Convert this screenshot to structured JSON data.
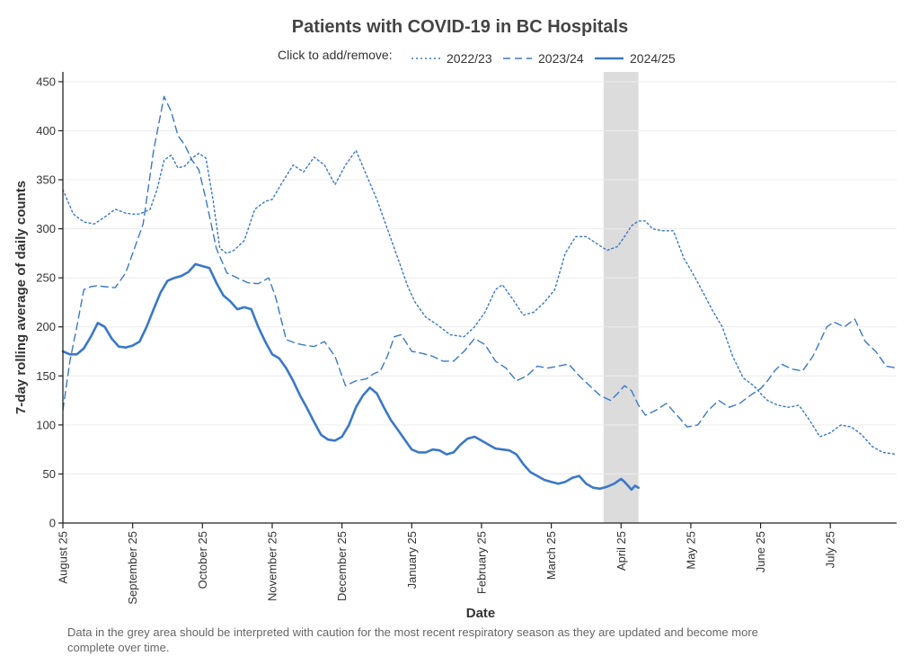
{
  "colors": {
    "series": "#3a78c9",
    "shade": "#dcdcdc",
    "grid": "#ececec",
    "text": "#333333"
  },
  "footnote": "Data in the grey area should be interpreted with caution for the most recent respiratory season as they are updated and become more complete over time.",
  "chart_data": {
    "type": "line",
    "title": "Patients with COVID-19 in BC Hospitals",
    "legend_hint": "Click to add/remove:",
    "legend_position": "top-center",
    "xlabel": "Date",
    "ylabel": "7-day rolling average of daily counts",
    "ylim": [
      0,
      460
    ],
    "yticks": [
      0,
      50,
      100,
      150,
      200,
      250,
      300,
      350,
      400,
      450
    ],
    "grid": true,
    "xaxis_months": [
      "August 25",
      "September 25",
      "October 25",
      "November 25",
      "December 25",
      "January 25",
      "February 25",
      "March 25",
      "April 25",
      "May 25",
      "June 25",
      "July 25"
    ],
    "xaxis_unit": "month index (0 = August)",
    "xlim": [
      0,
      11.95
    ],
    "caution_region": [
      7.75,
      8.25
    ],
    "series": [
      {
        "name": "2022/23",
        "style": "dotted",
        "x": [
          0,
          0.15,
          0.3,
          0.45,
          0.6,
          0.75,
          0.9,
          1.0,
          1.1,
          1.25,
          1.35,
          1.45,
          1.55,
          1.65,
          1.75,
          1.85,
          1.95,
          2.05,
          2.15,
          2.25,
          2.35,
          2.45,
          2.6,
          2.75,
          2.9,
          3.0,
          3.15,
          3.3,
          3.45,
          3.6,
          3.75,
          3.9,
          4.05,
          4.2,
          4.35,
          4.5,
          4.65,
          4.8,
          4.95,
          5.05,
          5.2,
          5.35,
          5.55,
          5.75,
          5.9,
          6.05,
          6.2,
          6.3,
          6.45,
          6.6,
          6.75,
          6.9,
          7.05,
          7.2,
          7.35,
          7.5,
          7.65,
          7.8,
          7.95,
          8.05,
          8.15,
          8.25,
          8.35,
          8.45,
          8.6,
          8.75,
          8.9,
          9.0,
          9.1,
          9.2,
          9.3,
          9.45,
          9.6,
          9.75,
          9.9,
          10.0,
          10.1,
          10.25,
          10.4,
          10.55,
          10.7,
          10.85,
          11.0,
          11.15,
          11.3,
          11.45,
          11.6,
          11.75,
          11.95
        ],
        "values": [
          340,
          315,
          307,
          305,
          312,
          320,
          316,
          315,
          315,
          320,
          340,
          370,
          375,
          362,
          364,
          372,
          377,
          372,
          330,
          280,
          275,
          278,
          288,
          320,
          328,
          330,
          348,
          365,
          358,
          373,
          365,
          345,
          365,
          380,
          355,
          330,
          300,
          270,
          240,
          225,
          210,
          203,
          192,
          190,
          200,
          215,
          238,
          243,
          228,
          212,
          215,
          225,
          238,
          275,
          292,
          292,
          285,
          278,
          282,
          292,
          303,
          308,
          308,
          300,
          298,
          298,
          270,
          258,
          245,
          232,
          218,
          200,
          170,
          148,
          140,
          132,
          125,
          120,
          118,
          120,
          105,
          88,
          92,
          100,
          98,
          90,
          78,
          72,
          70
        ]
      },
      {
        "name": "2023/24",
        "style": "dashed",
        "x": [
          0,
          0.1,
          0.2,
          0.3,
          0.4,
          0.5,
          0.6,
          0.75,
          0.9,
          1.0,
          1.15,
          1.3,
          1.45,
          1.55,
          1.65,
          1.75,
          1.85,
          1.95,
          2.05,
          2.2,
          2.35,
          2.5,
          2.65,
          2.8,
          2.95,
          3.05,
          3.2,
          3.35,
          3.5,
          3.6,
          3.75,
          3.9,
          4.05,
          4.2,
          4.35,
          4.45,
          4.55,
          4.65,
          4.75,
          4.85,
          5.0,
          5.15,
          5.3,
          5.45,
          5.6,
          5.75,
          5.9,
          6.05,
          6.2,
          6.35,
          6.5,
          6.65,
          6.8,
          6.95,
          7.1,
          7.25,
          7.4,
          7.55,
          7.7,
          7.85,
          7.95,
          8.05,
          8.15,
          8.25,
          8.35,
          8.5,
          8.65,
          8.8,
          8.95,
          9.1,
          9.25,
          9.4,
          9.55,
          9.7,
          9.85,
          10.0,
          10.1,
          10.2,
          10.3,
          10.45,
          10.6,
          10.75,
          10.85,
          10.95,
          11.05,
          11.2,
          11.35,
          11.5,
          11.65,
          11.8,
          11.95
        ],
        "values": [
          115,
          165,
          200,
          238,
          241,
          242,
          241,
          240,
          255,
          275,
          305,
          380,
          435,
          420,
          395,
          385,
          370,
          360,
          330,
          280,
          255,
          250,
          245,
          244,
          250,
          230,
          187,
          183,
          181,
          180,
          185,
          170,
          140,
          145,
          147,
          152,
          155,
          170,
          190,
          192,
          175,
          173,
          170,
          165,
          165,
          175,
          188,
          182,
          165,
          158,
          145,
          150,
          160,
          158,
          160,
          162,
          150,
          140,
          130,
          125,
          132,
          140,
          135,
          120,
          110,
          115,
          122,
          110,
          98,
          100,
          115,
          125,
          118,
          122,
          130,
          137,
          145,
          155,
          162,
          157,
          155,
          170,
          185,
          200,
          205,
          200,
          208,
          185,
          175,
          160,
          158
        ]
      },
      {
        "name": "2024/25",
        "style": "solid",
        "x": [
          0,
          0.1,
          0.2,
          0.3,
          0.4,
          0.5,
          0.6,
          0.7,
          0.8,
          0.9,
          1.0,
          1.1,
          1.2,
          1.3,
          1.4,
          1.5,
          1.6,
          1.7,
          1.8,
          1.9,
          2.0,
          2.1,
          2.2,
          2.3,
          2.4,
          2.5,
          2.6,
          2.7,
          2.8,
          2.9,
          3.0,
          3.1,
          3.2,
          3.3,
          3.4,
          3.5,
          3.6,
          3.7,
          3.8,
          3.9,
          4.0,
          4.1,
          4.2,
          4.3,
          4.4,
          4.5,
          4.6,
          4.7,
          4.8,
          4.9,
          5.0,
          5.1,
          5.2,
          5.3,
          5.4,
          5.5,
          5.6,
          5.7,
          5.8,
          5.9,
          6.0,
          6.1,
          6.2,
          6.3,
          6.4,
          6.5,
          6.6,
          6.7,
          6.8,
          6.9,
          7.0,
          7.1,
          7.2,
          7.3,
          7.4,
          7.5,
          7.6,
          7.7,
          7.8,
          7.9,
          8.0,
          8.05,
          8.1,
          8.15,
          8.2,
          8.25
        ],
        "values": [
          175,
          172,
          172,
          178,
          190,
          204,
          200,
          188,
          180,
          179,
          181,
          185,
          200,
          218,
          235,
          247,
          250,
          252,
          256,
          264,
          262,
          260,
          245,
          232,
          226,
          218,
          220,
          218,
          200,
          185,
          172,
          168,
          158,
          145,
          130,
          117,
          103,
          90,
          85,
          84,
          88,
          100,
          118,
          130,
          138,
          132,
          118,
          105,
          95,
          85,
          75,
          72,
          72,
          75,
          74,
          70,
          72,
          80,
          86,
          88,
          84,
          80,
          76,
          75,
          74,
          70,
          60,
          52,
          48,
          44,
          42,
          40,
          42,
          46,
          48,
          40,
          36,
          35,
          37,
          40,
          45,
          42,
          38,
          34,
          38,
          36
        ]
      }
    ]
  }
}
